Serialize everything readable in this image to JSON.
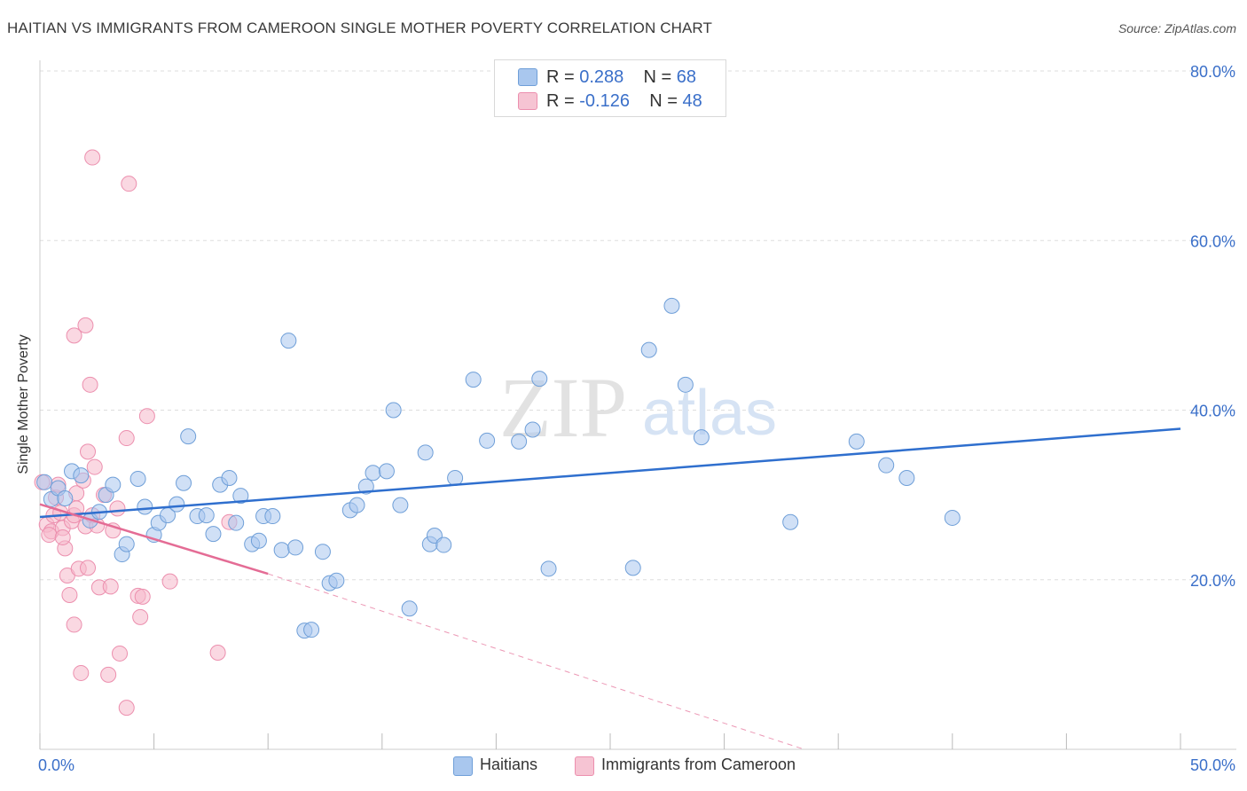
{
  "title": "HAITIAN VS IMMIGRANTS FROM CAMEROON SINGLE MOTHER POVERTY CORRELATION CHART",
  "source": "Source: ZipAtlas.com",
  "watermark": {
    "zip": "ZIP",
    "atlas": "atlas"
  },
  "legend_top": {
    "rows": [
      {
        "r_label": "R = ",
        "r_value": "0.288",
        "n_label": "N = ",
        "n_value": "68"
      },
      {
        "r_label": "R = ",
        "r_value": "-0.126",
        "n_label": "N = ",
        "n_value": "48"
      }
    ]
  },
  "colors": {
    "blue_fill": "#a9c7ee",
    "blue_stroke": "#6f9fd8",
    "blue_line": "#2f6fce",
    "pink_fill": "#f6b8cb",
    "pink_stroke": "#ec8fae",
    "pink_line": "#e46c95",
    "axis_text": "#3a6fc9",
    "grid": "#dddddd"
  },
  "chart_data": {
    "type": "scatter",
    "title": "HAITIAN VS IMMIGRANTS FROM CAMEROON SINGLE MOTHER POVERTY CORRELATION CHART",
    "xlabel": "",
    "ylabel": "Single Mother Poverty",
    "xlim": [
      0,
      50
    ],
    "ylim": [
      0,
      80
    ],
    "x_tick_labels": [
      "0.0%",
      "50.0%"
    ],
    "y_tick_labels": [
      "20.0%",
      "40.0%",
      "60.0%",
      "80.0%"
    ],
    "y_ticks": [
      20,
      40,
      60,
      80
    ],
    "grid": "horizontal dashed",
    "legend_position": "top-center",
    "series": [
      {
        "name": "Haitians",
        "r": 0.288,
        "n": 68,
        "trend": {
          "x": [
            0,
            50
          ],
          "y": [
            27.4,
            37.8
          ],
          "style": "solid"
        },
        "points": [
          [
            0.2,
            31.5
          ],
          [
            0.5,
            29.5
          ],
          [
            0.8,
            30.8
          ],
          [
            1.1,
            29.6
          ],
          [
            1.4,
            32.8
          ],
          [
            1.8,
            32.3
          ],
          [
            2.2,
            27.0
          ],
          [
            2.6,
            28.0
          ],
          [
            2.9,
            30.0
          ],
          [
            3.2,
            31.2
          ],
          [
            3.6,
            23.0
          ],
          [
            3.8,
            24.2
          ],
          [
            4.3,
            31.9
          ],
          [
            4.6,
            28.6
          ],
          [
            5.0,
            25.3
          ],
          [
            5.2,
            26.7
          ],
          [
            5.6,
            27.6
          ],
          [
            6.0,
            28.9
          ],
          [
            6.3,
            31.4
          ],
          [
            6.5,
            36.9
          ],
          [
            6.9,
            27.5
          ],
          [
            7.3,
            27.6
          ],
          [
            7.6,
            25.4
          ],
          [
            7.9,
            31.2
          ],
          [
            8.3,
            32.0
          ],
          [
            8.6,
            26.7
          ],
          [
            8.8,
            29.9
          ],
          [
            9.3,
            24.2
          ],
          [
            9.6,
            24.6
          ],
          [
            9.8,
            27.5
          ],
          [
            10.2,
            27.5
          ],
          [
            10.6,
            23.5
          ],
          [
            10.9,
            48.2
          ],
          [
            11.2,
            23.8
          ],
          [
            11.6,
            14.0
          ],
          [
            11.9,
            14.1
          ],
          [
            12.4,
            23.3
          ],
          [
            12.7,
            19.6
          ],
          [
            13.0,
            19.9
          ],
          [
            13.6,
            28.2
          ],
          [
            13.9,
            28.8
          ],
          [
            14.3,
            31.0
          ],
          [
            14.6,
            32.6
          ],
          [
            15.2,
            32.8
          ],
          [
            15.5,
            40.0
          ],
          [
            15.8,
            28.8
          ],
          [
            16.2,
            16.6
          ],
          [
            16.9,
            35.0
          ],
          [
            17.1,
            24.2
          ],
          [
            17.3,
            25.2
          ],
          [
            17.7,
            24.1
          ],
          [
            18.2,
            32.0
          ],
          [
            19.0,
            43.6
          ],
          [
            19.6,
            36.4
          ],
          [
            21.0,
            36.3
          ],
          [
            21.6,
            37.7
          ],
          [
            21.9,
            43.7
          ],
          [
            22.3,
            21.3
          ],
          [
            26.0,
            21.4
          ],
          [
            26.7,
            47.1
          ],
          [
            27.7,
            52.3
          ],
          [
            28.3,
            43.0
          ],
          [
            29.0,
            36.8
          ],
          [
            32.9,
            26.8
          ],
          [
            35.8,
            36.3
          ],
          [
            37.1,
            33.5
          ],
          [
            38.0,
            32.0
          ],
          [
            40.0,
            27.3
          ]
        ]
      },
      {
        "name": "Immigrants from Cameroon",
        "r": -0.126,
        "n": 48,
        "trend": {
          "x": [
            0,
            10
          ],
          "y": [
            28.9,
            20.7
          ],
          "style": "solid"
        },
        "trend_extension": {
          "x": [
            10,
            33.5
          ],
          "y": [
            20.7,
            0.0
          ],
          "style": "dashed"
        },
        "points": [
          [
            0.1,
            31.5
          ],
          [
            0.3,
            26.5
          ],
          [
            0.5,
            25.7
          ],
          [
            0.6,
            27.6
          ],
          [
            0.7,
            29.7
          ],
          [
            0.8,
            31.2
          ],
          [
            0.9,
            27.9
          ],
          [
            1.0,
            26.1
          ],
          [
            1.1,
            23.7
          ],
          [
            1.2,
            20.5
          ],
          [
            1.3,
            18.2
          ],
          [
            1.4,
            26.9
          ],
          [
            1.5,
            27.6
          ],
          [
            1.6,
            30.2
          ],
          [
            1.5,
            48.8
          ],
          [
            1.5,
            14.7
          ],
          [
            1.7,
            21.3
          ],
          [
            1.8,
            9.0
          ],
          [
            1.9,
            31.7
          ],
          [
            2.0,
            26.3
          ],
          [
            2.1,
            21.4
          ],
          [
            2.1,
            35.1
          ],
          [
            2.2,
            43.0
          ],
          [
            2.0,
            50.0
          ],
          [
            2.3,
            27.6
          ],
          [
            2.4,
            33.3
          ],
          [
            2.6,
            19.1
          ],
          [
            2.8,
            30.0
          ],
          [
            3.0,
            8.8
          ],
          [
            3.1,
            19.2
          ],
          [
            3.2,
            25.8
          ],
          [
            3.4,
            28.4
          ],
          [
            3.5,
            11.3
          ],
          [
            3.8,
            36.7
          ],
          [
            3.8,
            4.9
          ],
          [
            3.9,
            66.7
          ],
          [
            4.3,
            18.1
          ],
          [
            4.4,
            15.6
          ],
          [
            4.5,
            18.0
          ],
          [
            4.7,
            39.3
          ],
          [
            5.7,
            19.8
          ],
          [
            7.8,
            11.4
          ],
          [
            8.3,
            26.8
          ],
          [
            2.3,
            69.8
          ],
          [
            0.4,
            25.3
          ],
          [
            1.0,
            25.0
          ],
          [
            1.6,
            28.4
          ],
          [
            2.5,
            26.4
          ]
        ]
      }
    ]
  },
  "legend_bottom": {
    "items": [
      "Haitians",
      "Immigrants from Cameroon"
    ]
  }
}
